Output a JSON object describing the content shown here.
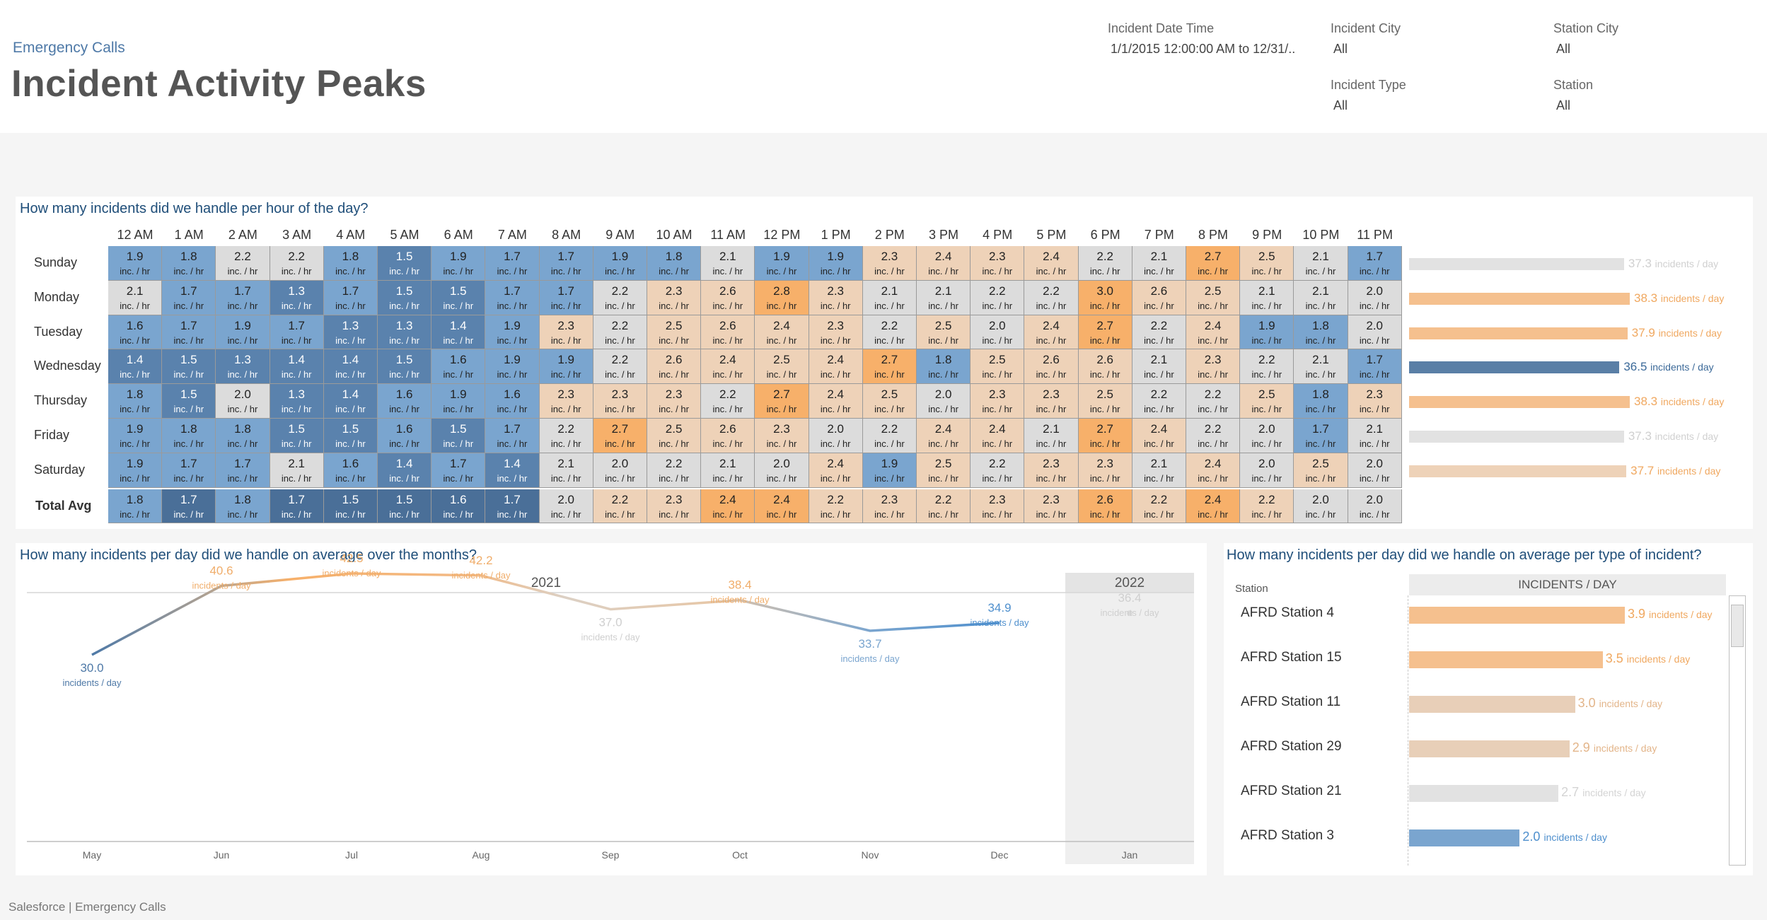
{
  "header": {
    "breadcrumb": "Emergency Calls",
    "title": "Incident Activity Peaks"
  },
  "filters": [
    {
      "label": "Incident Date Time",
      "value": "1/1/2015 12:00:00 AM to 12/31/.."
    },
    {
      "label": "Incident City",
      "value": "All"
    },
    {
      "label": "Station City",
      "value": "All"
    },
    {
      "label": "Incident Type",
      "value": "All"
    },
    {
      "label": "Station",
      "value": "All"
    }
  ],
  "heatmap": {
    "title": "How many incidents did we handle per hour of the day?",
    "unit": "inc. / hr",
    "hours": [
      "12 AM",
      "1 AM",
      "2 AM",
      "3 AM",
      "4 AM",
      "5 AM",
      "6 AM",
      "7 AM",
      "8 AM",
      "9 AM",
      "10 AM",
      "11 AM",
      "12 PM",
      "1 PM",
      "2 PM",
      "3 PM",
      "4 PM",
      "5 PM",
      "6 PM",
      "7 PM",
      "8 PM",
      "9 PM",
      "10 PM",
      "11 PM"
    ],
    "rows": [
      {
        "day": "Sunday",
        "values": [
          "1.9",
          "1.8",
          "2.2",
          "2.2",
          "1.8",
          "1.5",
          "1.9",
          "1.7",
          "1.7",
          "1.9",
          "1.8",
          "2.1",
          "1.9",
          "1.9",
          "2.3",
          "2.4",
          "2.3",
          "2.4",
          "2.2",
          "2.1",
          "2.7",
          "2.5",
          "2.1",
          "1.7"
        ]
      },
      {
        "day": "Monday",
        "values": [
          "2.1",
          "1.7",
          "1.7",
          "1.3",
          "1.7",
          "1.5",
          "1.5",
          "1.7",
          "1.7",
          "2.2",
          "2.3",
          "2.6",
          "2.8",
          "2.3",
          "2.1",
          "2.1",
          "2.2",
          "2.2",
          "3.0",
          "2.6",
          "2.5",
          "2.1",
          "2.1",
          "2.0"
        ]
      },
      {
        "day": "Tuesday",
        "values": [
          "1.6",
          "1.7",
          "1.9",
          "1.7",
          "1.3",
          "1.3",
          "1.4",
          "1.9",
          "2.3",
          "2.2",
          "2.5",
          "2.6",
          "2.4",
          "2.3",
          "2.2",
          "2.5",
          "2.0",
          "2.4",
          "2.7",
          "2.2",
          "2.4",
          "1.9",
          "1.8",
          "2.0"
        ]
      },
      {
        "day": "Wednesday",
        "values": [
          "1.4",
          "1.5",
          "1.3",
          "1.4",
          "1.4",
          "1.5",
          "1.6",
          "1.9",
          "1.9",
          "2.2",
          "2.6",
          "2.4",
          "2.5",
          "2.4",
          "2.7",
          "1.8",
          "2.5",
          "2.6",
          "2.6",
          "2.1",
          "2.3",
          "2.2",
          "2.1",
          "1.7"
        ]
      },
      {
        "day": "Thursday",
        "values": [
          "1.8",
          "1.5",
          "2.0",
          "1.3",
          "1.4",
          "1.6",
          "1.9",
          "1.6",
          "2.3",
          "2.3",
          "2.3",
          "2.2",
          "2.7",
          "2.4",
          "2.5",
          "2.0",
          "2.3",
          "2.3",
          "2.5",
          "2.2",
          "2.2",
          "2.5",
          "1.8",
          "2.3"
        ]
      },
      {
        "day": "Friday",
        "values": [
          "1.9",
          "1.8",
          "1.8",
          "1.5",
          "1.5",
          "1.6",
          "1.5",
          "1.7",
          "2.2",
          "2.7",
          "2.5",
          "2.6",
          "2.3",
          "2.0",
          "2.2",
          "2.4",
          "2.4",
          "2.1",
          "2.7",
          "2.4",
          "2.2",
          "2.0",
          "1.7",
          "2.1"
        ]
      },
      {
        "day": "Saturday",
        "values": [
          "1.9",
          "1.7",
          "1.7",
          "2.1",
          "1.6",
          "1.4",
          "1.7",
          "1.4",
          "2.1",
          "2.0",
          "2.2",
          "2.1",
          "2.0",
          "2.4",
          "1.9",
          "2.5",
          "2.2",
          "2.3",
          "2.3",
          "2.1",
          "2.4",
          "2.0",
          "2.5",
          "2.0"
        ]
      },
      {
        "day": "Total Avg",
        "values": [
          "1.8",
          "1.7",
          "1.8",
          "1.7",
          "1.5",
          "1.5",
          "1.6",
          "1.7",
          "2.0",
          "2.2",
          "2.3",
          "2.4",
          "2.4",
          "2.2",
          "2.3",
          "2.2",
          "2.3",
          "2.3",
          "2.6",
          "2.2",
          "2.4",
          "2.2",
          "2.0",
          "2.0"
        ]
      }
    ],
    "day_totals": {
      "unit": "incidents / day",
      "items": [
        {
          "day": "Sunday",
          "value": "37.3",
          "num": 37.3
        },
        {
          "day": "Monday",
          "value": "38.3",
          "num": 38.3
        },
        {
          "day": "Tuesday",
          "value": "37.9",
          "num": 37.9
        },
        {
          "day": "Wednesday",
          "value": "36.5",
          "num": 36.5
        },
        {
          "day": "Thursday",
          "value": "38.3",
          "num": 38.3
        },
        {
          "day": "Friday",
          "value": "37.3",
          "num": 37.3
        },
        {
          "day": "Saturday",
          "value": "37.7",
          "num": 37.7
        }
      ]
    }
  },
  "monthly": {
    "title": "How many incidents per day did we handle on average over the months?",
    "year_2021": "2021",
    "year_2022": "2022",
    "unit": "incidents / day"
  },
  "stations": {
    "title": "How many incidents per day did we handle on average per type of incident?",
    "column_label": "Station",
    "header": "INCIDENTS / DAY",
    "unit": "incidents / day",
    "items": [
      {
        "name": "AFRD Station 4",
        "value": "3.9",
        "num": 3.9
      },
      {
        "name": "AFRD Station 15",
        "value": "3.5",
        "num": 3.5
      },
      {
        "name": "AFRD Station 11",
        "value": "3.0",
        "num": 3.0
      },
      {
        "name": "AFRD Station 29",
        "value": "2.9",
        "num": 2.9
      },
      {
        "name": "AFRD Station 21",
        "value": "2.7",
        "num": 2.7
      },
      {
        "name": "AFRD Station 3",
        "value": "2.0",
        "num": 2.0
      }
    ]
  },
  "chart_data": {
    "type": "line",
    "title": "How many incidents per day did we handle on average over the months?",
    "x": [
      "May",
      "Jun",
      "Jul",
      "Aug",
      "Sep",
      "Oct",
      "Nov",
      "Dec",
      "Jan"
    ],
    "x_years": [
      "2021",
      "2021",
      "2021",
      "2021",
      "2021",
      "2021",
      "2021",
      "2021",
      "2022"
    ],
    "series": [
      {
        "values": [
          30.0,
          40.6,
          42.5,
          42.2,
          37.0,
          38.4,
          33.7,
          34.9,
          36.4
        ]
      }
    ],
    "ylabel": "",
    "point_unit": "incidents / day",
    "grid": false
  },
  "footer": "Salesforce | Emergency Calls",
  "colors": {
    "blue_light": "#a7c2dc",
    "blue_mid": "#7aa5cf",
    "blue_dark": "#5a82ad",
    "blue_darkest": "#4a6f98",
    "gray": "#dcdcdc",
    "peach": "#eed2b8",
    "orange_mid": "#f5c08e",
    "orange": "#f7b06a"
  }
}
